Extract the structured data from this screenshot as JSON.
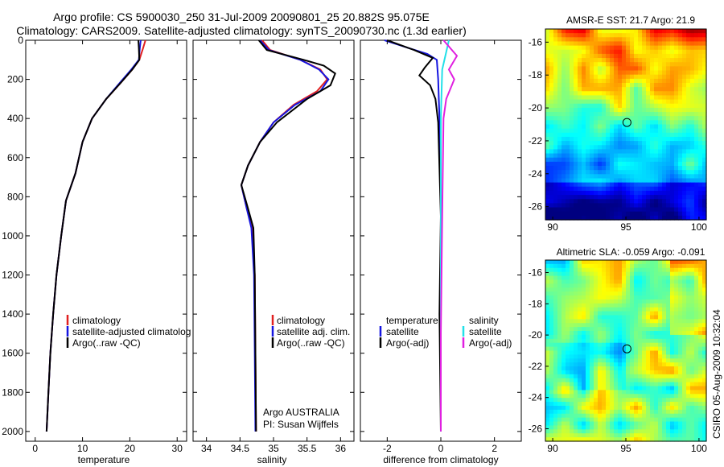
{
  "header": {
    "line1": "Argo profile: CS 5900030_250 31-Jul-2009 20090801_25 20.882S 95.075E",
    "line2": "Climatology: CARS2009. Satellite-adjusted climatology: synTS_20090730.nc (1.3d earlier)"
  },
  "colors": {
    "red": "#e02020",
    "blue": "#1515e0",
    "black": "#000000",
    "cyan": "#22e0e8",
    "magenta": "#e020e0"
  },
  "chart_data": [
    {
      "type": "line",
      "xlabel": "temperature",
      "ylabel": "",
      "xlim": [
        -2,
        32
      ],
      "ylim": [
        2050,
        0
      ],
      "xticks": [
        "0",
        "10",
        "20",
        "30"
      ],
      "yticks": [
        "0",
        "200",
        "400",
        "600",
        "800",
        "1000",
        "1200",
        "1400",
        "1600",
        "1800",
        "2000"
      ],
      "legend": [
        "climatology",
        "satellite-adjusted climatolog",
        "Argo(..raw -QC)"
      ],
      "legend_placement": "lower-center",
      "series": [
        {
          "color": "red",
          "points": [
            [
              23.3,
              0
            ],
            [
              22.8,
              40
            ],
            [
              22.0,
              100
            ],
            [
              20.5,
              150
            ],
            [
              18.0,
              220
            ],
            [
              15.0,
              300
            ],
            [
              12.0,
              400
            ],
            [
              10.0,
              520
            ],
            [
              8.5,
              680
            ],
            [
              6.5,
              820
            ],
            [
              5.5,
              1000
            ],
            [
              4.5,
              1200
            ],
            [
              3.8,
              1400
            ],
            [
              3.2,
              1600
            ],
            [
              2.8,
              1800
            ],
            [
              2.4,
              2000
            ]
          ]
        },
        {
          "color": "blue",
          "points": [
            [
              22.3,
              0
            ],
            [
              22.1,
              40
            ],
            [
              21.9,
              100
            ],
            [
              20.3,
              150
            ],
            [
              17.8,
              220
            ],
            [
              15.0,
              300
            ],
            [
              12.0,
              400
            ],
            [
              10.0,
              520
            ],
            [
              8.5,
              680
            ],
            [
              6.5,
              820
            ],
            [
              5.5,
              1000
            ],
            [
              4.5,
              1200
            ],
            [
              3.8,
              1400
            ],
            [
              3.2,
              1600
            ],
            [
              2.8,
              1800
            ],
            [
              2.4,
              2000
            ]
          ]
        },
        {
          "color": "black",
          "points": [
            [
              21.8,
              0
            ],
            [
              21.9,
              40
            ],
            [
              22.0,
              100
            ],
            [
              20.5,
              150
            ],
            [
              18.0,
              220
            ],
            [
              15.0,
              300
            ],
            [
              12.0,
              400
            ],
            [
              10.0,
              520
            ],
            [
              8.5,
              680
            ],
            [
              6.5,
              820
            ],
            [
              5.5,
              1000
            ],
            [
              4.5,
              1200
            ],
            [
              3.8,
              1400
            ],
            [
              3.2,
              1600
            ],
            [
              2.8,
              1800
            ],
            [
              2.4,
              2000
            ]
          ]
        }
      ]
    },
    {
      "type": "line",
      "xlabel": "salinity",
      "ylabel": "",
      "xlim": [
        33.8,
        36.2
      ],
      "ylim": [
        2050,
        0
      ],
      "xticks": [
        "34",
        "34.5",
        "35",
        "35.5",
        "36"
      ],
      "legend": [
        "climatology",
        "satellite adj. clim.",
        "Argo(..raw -QC)"
      ],
      "legend_placement": "lower-center",
      "annotation": [
        "Argo AUSTRALIA",
        "PI: Susan Wijffels"
      ],
      "series": [
        {
          "color": "red",
          "points": [
            [
              34.83,
              0
            ],
            [
              34.95,
              50
            ],
            [
              35.4,
              100
            ],
            [
              35.7,
              150
            ],
            [
              35.8,
              200
            ],
            [
              35.65,
              260
            ],
            [
              35.3,
              330
            ],
            [
              35.0,
              420
            ],
            [
              34.8,
              520
            ],
            [
              34.62,
              640
            ],
            [
              34.52,
              740
            ],
            [
              34.6,
              860
            ],
            [
              34.68,
              960
            ],
            [
              34.72,
              1200
            ],
            [
              34.73,
              1600
            ],
            [
              34.74,
              2000
            ]
          ]
        },
        {
          "color": "blue",
          "points": [
            [
              34.8,
              0
            ],
            [
              34.93,
              50
            ],
            [
              35.4,
              100
            ],
            [
              35.68,
              150
            ],
            [
              35.82,
              200
            ],
            [
              35.7,
              260
            ],
            [
              35.32,
              330
            ],
            [
              35.0,
              420
            ],
            [
              34.8,
              520
            ],
            [
              34.62,
              640
            ],
            [
              34.52,
              740
            ],
            [
              34.6,
              860
            ],
            [
              34.67,
              960
            ],
            [
              34.71,
              1200
            ],
            [
              34.72,
              1600
            ],
            [
              34.73,
              2000
            ]
          ]
        },
        {
          "color": "black",
          "points": [
            [
              34.78,
              0
            ],
            [
              34.9,
              50
            ],
            [
              35.45,
              100
            ],
            [
              35.75,
              130
            ],
            [
              35.92,
              170
            ],
            [
              35.85,
              230
            ],
            [
              35.5,
              300
            ],
            [
              35.05,
              420
            ],
            [
              34.8,
              520
            ],
            [
              34.62,
              640
            ],
            [
              34.52,
              740
            ],
            [
              34.62,
              860
            ],
            [
              34.7,
              960
            ],
            [
              34.72,
              1200
            ],
            [
              34.73,
              1600
            ],
            [
              34.74,
              2000
            ]
          ]
        }
      ]
    },
    {
      "type": "line",
      "xlabel": "difference from climatology",
      "ylabel": "",
      "xlim": [
        -3,
        3
      ],
      "ylim": [
        2050,
        0
      ],
      "xticks": [
        "-2",
        "0",
        "2"
      ],
      "legend_titles": [
        "temperature",
        "salinity"
      ],
      "legend": [
        "satellite",
        "Argo(-adj)",
        "satellite",
        "Argo(-adj)"
      ],
      "legend_placement": "lower-center",
      "series": [
        {
          "name": "",
          "color": "blue",
          "points": [
            [
              -2.1,
              0
            ],
            [
              -1.2,
              40
            ],
            [
              -0.5,
              70
            ],
            [
              -0.15,
              100
            ],
            [
              -0.1,
              200
            ],
            [
              -0.05,
              400
            ],
            [
              0,
              800
            ],
            [
              0,
              1200
            ],
            [
              0,
              1600
            ],
            [
              0,
              2000
            ]
          ]
        },
        {
          "name": "",
          "color": "black",
          "points": [
            [
              -2.0,
              0
            ],
            [
              -1.0,
              50
            ],
            [
              -0.3,
              90
            ],
            [
              -0.6,
              140
            ],
            [
              -0.8,
              180
            ],
            [
              -0.4,
              230
            ],
            [
              -0.2,
              300
            ],
            [
              -0.1,
              420
            ],
            [
              0,
              900
            ],
            [
              -0.05,
              1400
            ],
            [
              0,
              2000
            ]
          ]
        },
        {
          "name": "",
          "color": "cyan",
          "points": [
            [
              0.3,
              0
            ],
            [
              0.2,
              60
            ],
            [
              0.05,
              150
            ],
            [
              0,
              400
            ],
            [
              0,
              800
            ],
            [
              0,
              1400
            ],
            [
              0,
              2000
            ]
          ]
        },
        {
          "name": "",
          "color": "magenta",
          "points": [
            [
              0.1,
              0
            ],
            [
              0.6,
              80
            ],
            [
              0.3,
              150
            ],
            [
              0.5,
              200
            ],
            [
              0.2,
              300
            ],
            [
              0.1,
              400
            ],
            [
              0.05,
              900
            ],
            [
              0,
              1500
            ],
            [
              0,
              2000
            ]
          ]
        }
      ]
    },
    {
      "type": "heatmap",
      "title": "AMSR-E SST: 21.7 Argo: 21.9",
      "xticks": [
        "90",
        "95",
        "100"
      ],
      "yticks": [
        "-16",
        "-18",
        "-20",
        "-22",
        "-24",
        "-26"
      ],
      "xlim": [
        89.5,
        100.5
      ],
      "ylim": [
        -15.2,
        -26.8
      ],
      "marker": {
        "lon": 95.075,
        "lat": -20.882
      }
    },
    {
      "type": "heatmap",
      "title": "Altimetric SLA: -0.059 Argo: -0.091",
      "xticks": [
        "90",
        "95",
        "100"
      ],
      "yticks": [
        "-16",
        "-18",
        "-20",
        "-22",
        "-24",
        "-26"
      ],
      "xlim": [
        89.5,
        100.5
      ],
      "ylim": [
        -15.2,
        -26.8
      ],
      "marker": {
        "lon": 95.075,
        "lat": -20.882
      }
    }
  ],
  "footer": {
    "side_text": "CSIRO 05-Aug-2009 10:32:04"
  }
}
